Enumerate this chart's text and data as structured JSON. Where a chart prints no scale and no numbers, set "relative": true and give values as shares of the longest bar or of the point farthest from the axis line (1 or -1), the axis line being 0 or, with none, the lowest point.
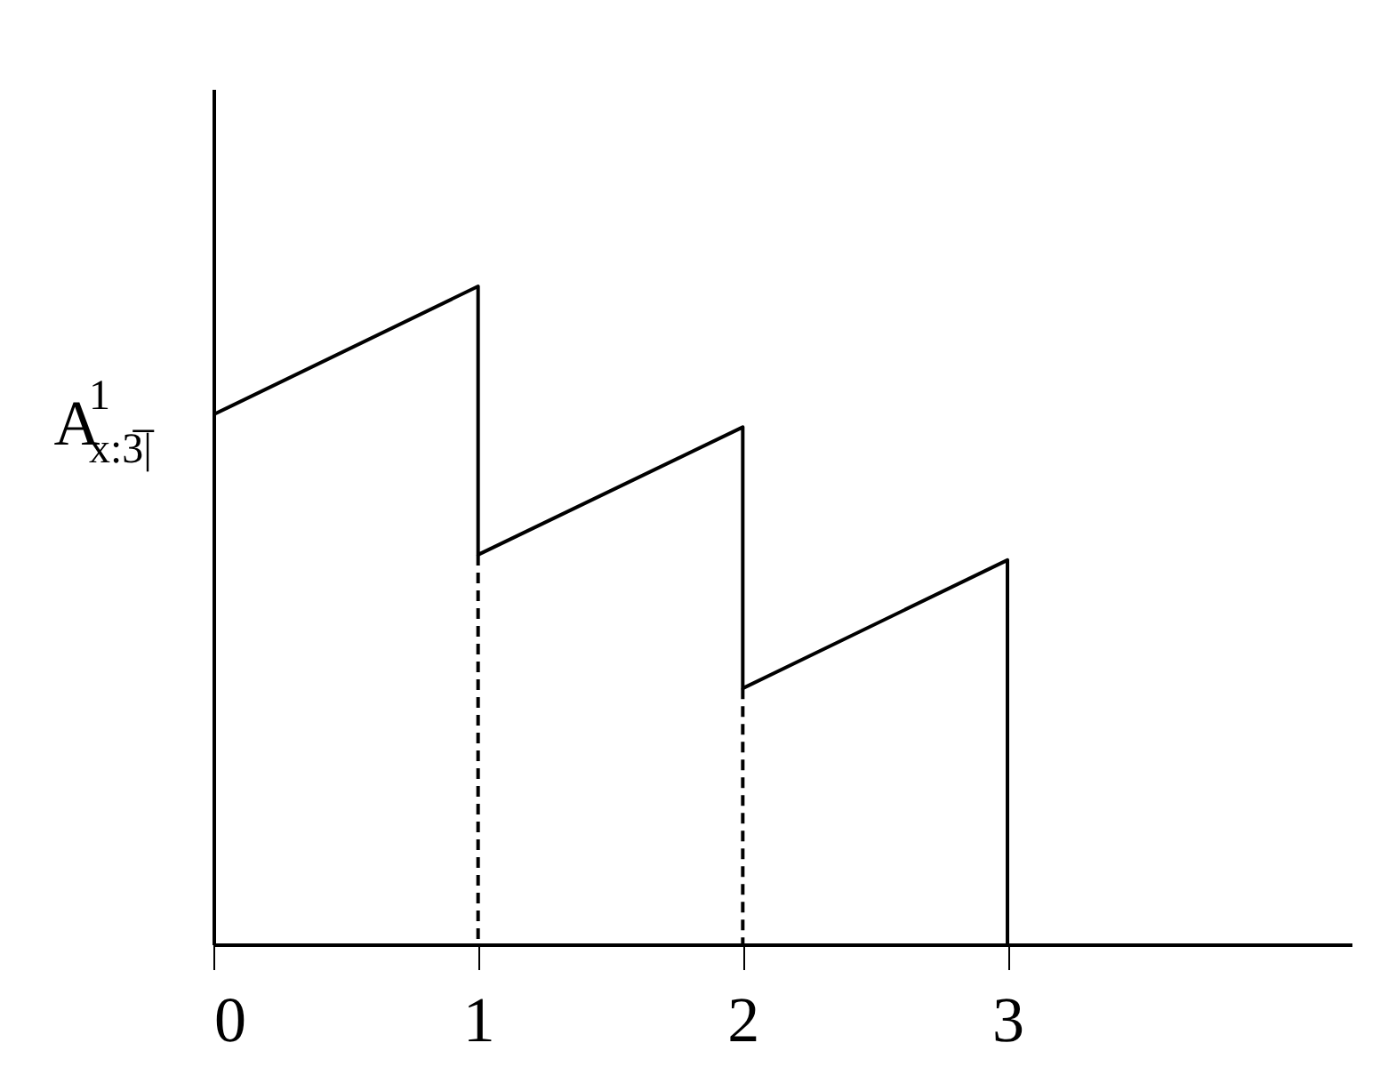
{
  "chart_data": {
    "type": "line",
    "relative": true,
    "xlim": [
      0,
      4.3
    ],
    "xticks": [
      0,
      1,
      2,
      3
    ],
    "grid": false,
    "marker": "none",
    "series": [
      {
        "color": "#000000",
        "line_style": "solid",
        "x": [
          0,
          1,
          1,
          2,
          2,
          3,
          3
        ],
        "values": [
          0.805,
          1,
          0.592,
          0.786,
          0.389,
          0.584,
          0
        ]
      },
      {
        "color": "#000000",
        "line_style": "dashed",
        "x": [
          1,
          1
        ],
        "values": [
          0.592,
          0
        ]
      },
      {
        "color": "#000000",
        "line_style": "dashed",
        "x": [
          2,
          2
        ],
        "values": [
          0.389,
          0
        ]
      }
    ],
    "annotations": [
      {
        "text": "A$^{1}$$_{x:3̅|}$",
        "x": 0,
        "y": 0.805
      }
    ]
  }
}
